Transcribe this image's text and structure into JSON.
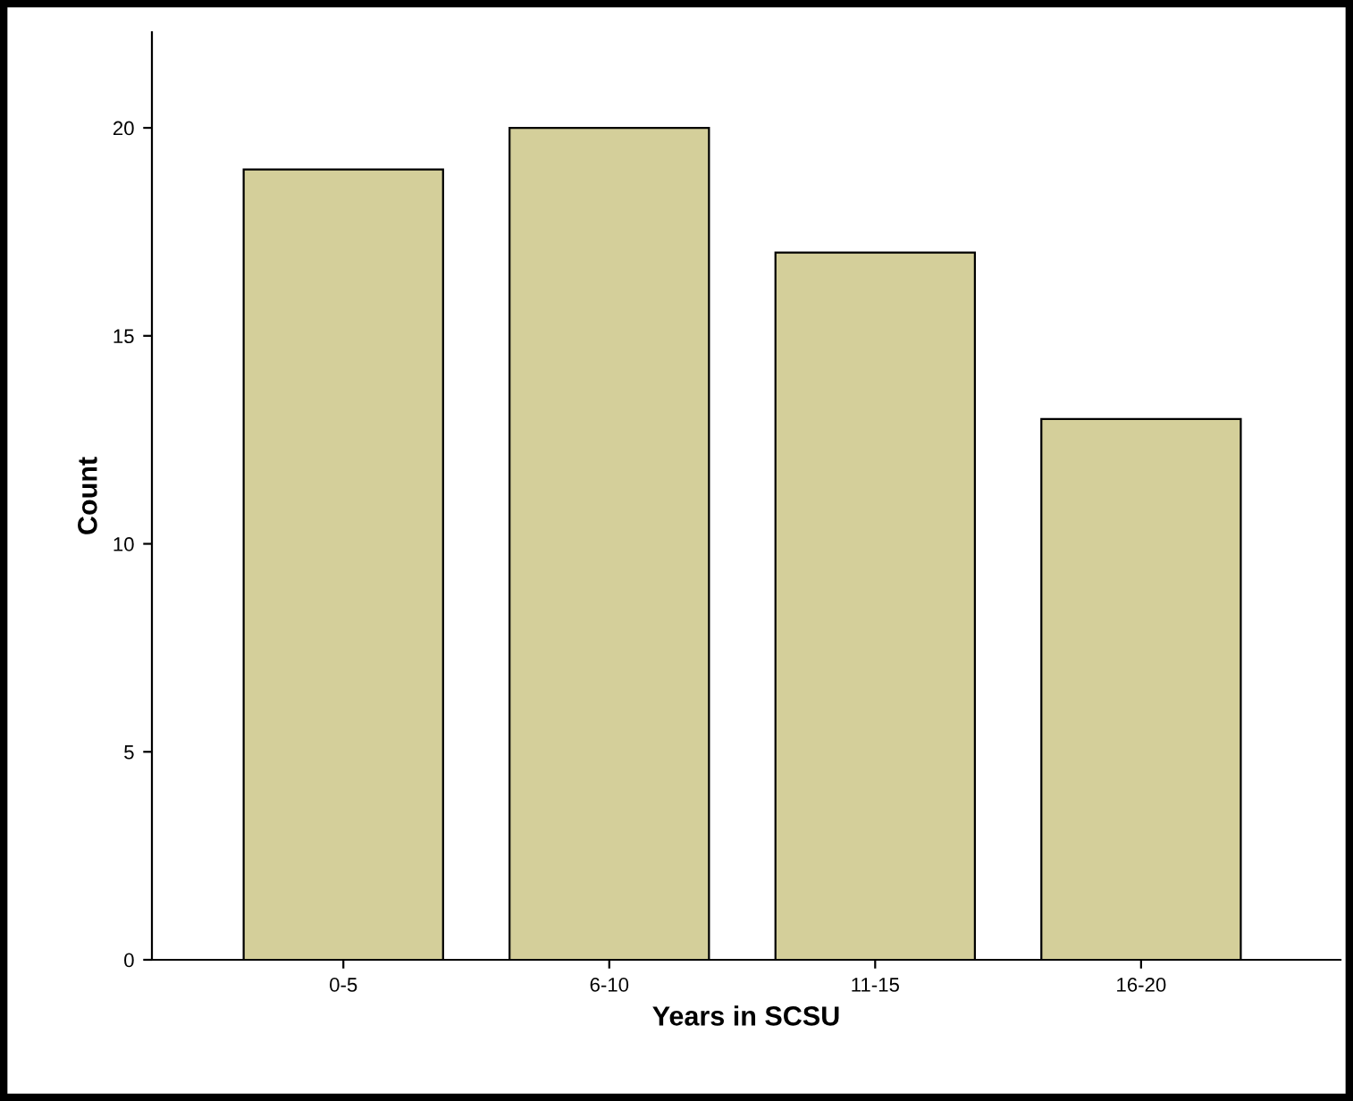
{
  "chart_data": {
    "type": "bar",
    "xlabel": "Years in SCSU",
    "ylabel": "Count",
    "categories": [
      "0-5",
      "6-10",
      "11-15",
      "16-20"
    ],
    "values": [
      19,
      20,
      17,
      13
    ],
    "color": "#d4cf9a",
    "ylim": [
      0,
      22.3
    ],
    "yticks": [
      0,
      5,
      10,
      15,
      20
    ],
    "grid": false
  }
}
